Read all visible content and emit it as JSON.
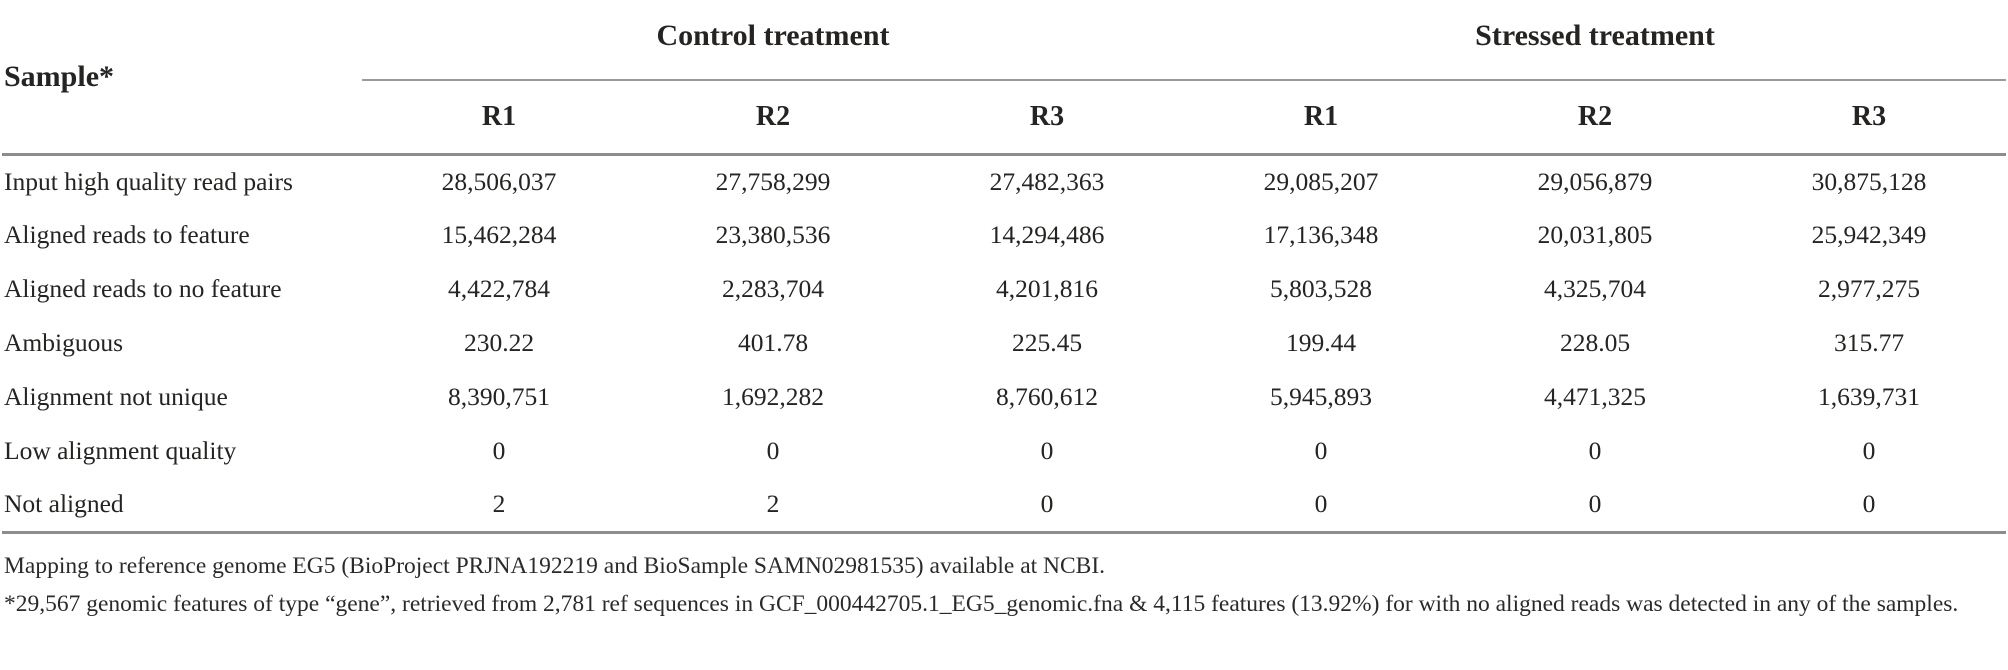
{
  "colors": {
    "background": "#ffffff",
    "text": "#262422",
    "rule_gray": "#8d8d8d"
  },
  "table": {
    "sample_header": "Sample*",
    "groups": [
      {
        "label": "Control treatment",
        "replicates": [
          "R1",
          "R2",
          "R3"
        ]
      },
      {
        "label": "Stressed treatment",
        "replicates": [
          "R1",
          "R2",
          "R3"
        ]
      }
    ],
    "rows": [
      {
        "label": "Input high quality read pairs",
        "values": [
          "28,506,037",
          "27,758,299",
          "27,482,363",
          "29,085,207",
          "29,056,879",
          "30,875,128"
        ]
      },
      {
        "label": "Aligned reads to feature",
        "values": [
          "15,462,284",
          "23,380,536",
          "14,294,486",
          "17,136,348",
          "20,031,805",
          "25,942,349"
        ]
      },
      {
        "label": "Aligned reads to no feature",
        "values": [
          "4,422,784",
          "2,283,704",
          "4,201,816",
          "5,803,528",
          "4,325,704",
          "2,977,275"
        ]
      },
      {
        "label": "Ambiguous",
        "values": [
          "230.22",
          "401.78",
          "225.45",
          "199.44",
          "228.05",
          "315.77"
        ]
      },
      {
        "label": "Alignment not unique",
        "values": [
          "8,390,751",
          "1,692,282",
          "8,760,612",
          "5,945,893",
          "4,471,325",
          "1,639,731"
        ]
      },
      {
        "label": "Low alignment quality",
        "values": [
          "0",
          "0",
          "0",
          "0",
          "0",
          "0"
        ]
      },
      {
        "label": "Not aligned",
        "values": [
          "2",
          "2",
          "0",
          "0",
          "0",
          "0"
        ]
      }
    ],
    "footnotes": [
      "Mapping to reference genome EG5 (BioProject PRJNA192219 and BioSample SAMN02981535) available at NCBI.",
      "*29,567 genomic features of type “gene”, retrieved from 2,781 ref sequences in GCF_000442705.1_EG5_genomic.fna & 4,115 features (13.92%) for with no aligned reads was detected in any of the samples."
    ]
  }
}
